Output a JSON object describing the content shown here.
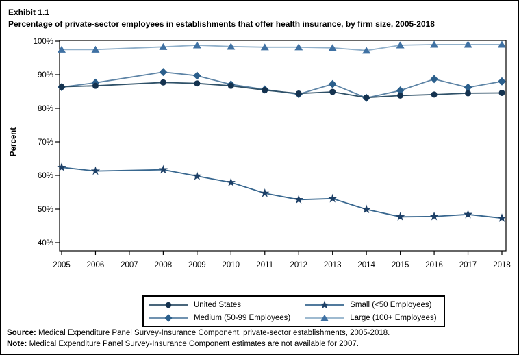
{
  "page": {
    "exhibit_label": "Exhibit 1.1",
    "title": "Percentage of private-sector employees in establishments that offer health insurance, by firm size, 2005-2018",
    "source_prefix": "Source:",
    "source_text": " Medical Expenditure Panel Survey-Insurance Component, private-sector establishments, 2005-2018.",
    "note_prefix": "Note:",
    "note_text": " Medical Expenditure Panel Survey-Insurance Component estimates are not available for 2007."
  },
  "legend": {
    "items": [
      {
        "label": "United States",
        "series_key": "us"
      },
      {
        "label": "Medium (50-99 Employees)",
        "series_key": "medium"
      },
      {
        "label": "Small (<50 Employees)",
        "series_key": "small"
      },
      {
        "label": "Large (100+ Employees)",
        "series_key": "large"
      }
    ]
  },
  "chart_data": {
    "type": "line",
    "title": "Percentage of private-sector employees in establishments that offer health insurance, by firm size, 2005-2018",
    "xlabel": "",
    "ylabel": "Percent",
    "ylim": [
      40,
      100
    ],
    "ytick_step": 10,
    "ytick_suffix": "%",
    "grid": false,
    "legend_position": "bottom",
    "missing_note": "2007 estimates not available",
    "x": [
      2005,
      2006,
      2007,
      2008,
      2009,
      2010,
      2011,
      2012,
      2013,
      2014,
      2015,
      2016,
      2017,
      2018
    ],
    "series": [
      {
        "key": "large",
        "name": "Large (100+ Employees)",
        "marker": "triangle",
        "marker_color": "#3F71A3",
        "line_color": "#91B0CA",
        "values": [
          97.5,
          97.5,
          null,
          98.3,
          98.8,
          98.4,
          98.2,
          98.2,
          98.0,
          97.2,
          98.8,
          99.0,
          99.0,
          99.0
        ]
      },
      {
        "key": "medium",
        "name": "Medium (50-99 Employees)",
        "marker": "diamond",
        "marker_color": "#2B5F8C",
        "line_color": "#5C83A5",
        "values": [
          86.3,
          87.6,
          null,
          90.8,
          89.7,
          87.1,
          85.6,
          84.2,
          87.2,
          83.1,
          85.3,
          88.7,
          86.2,
          88.0
        ]
      },
      {
        "key": "us",
        "name": "United States",
        "marker": "circle",
        "marker_color": "#14324F",
        "line_color": "#2F5168",
        "values": [
          86.4,
          86.7,
          null,
          87.7,
          87.4,
          86.7,
          85.4,
          84.4,
          84.9,
          83.2,
          83.8,
          84.1,
          84.5,
          84.6
        ]
      },
      {
        "key": "small",
        "name": "Small (<50 Employees)",
        "marker": "star",
        "marker_color": "#1C3F66",
        "line_color": "#38678F",
        "values": [
          62.4,
          61.3,
          null,
          61.7,
          59.8,
          57.9,
          54.7,
          52.8,
          53.1,
          49.9,
          47.7,
          47.8,
          48.4,
          47.3
        ]
      }
    ]
  }
}
